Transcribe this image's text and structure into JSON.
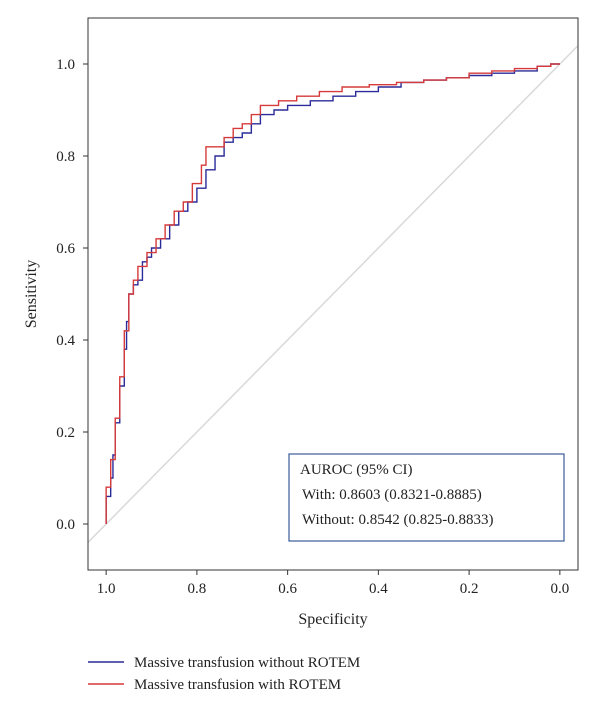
{
  "chart_data": {
    "type": "line",
    "title": "",
    "xlabel": "Specificity",
    "ylabel": "Sensitivity",
    "xlim": [
      1.04,
      -0.04
    ],
    "ylim": [
      -0.1,
      1.1
    ],
    "x_reversed": true,
    "x_ticks": [
      "1.0",
      "0.8",
      "0.6",
      "0.4",
      "0.2",
      "0.0"
    ],
    "y_ticks": [
      "0.0",
      "0.2",
      "0.4",
      "0.6",
      "0.8",
      "1.0"
    ],
    "grid": false,
    "reference_line": {
      "from": [
        1.04,
        -0.04
      ],
      "to": [
        -0.04,
        1.04
      ],
      "color": "#d9d9d9"
    },
    "series": [
      {
        "name": "Massive transfusion without ROTEM",
        "color": "#2b2b99",
        "points": [
          [
            1.0,
            0.0
          ],
          [
            1.0,
            0.06
          ],
          [
            0.99,
            0.1
          ],
          [
            0.985,
            0.15
          ],
          [
            0.98,
            0.22
          ],
          [
            0.97,
            0.3
          ],
          [
            0.96,
            0.38
          ],
          [
            0.955,
            0.44
          ],
          [
            0.95,
            0.5
          ],
          [
            0.94,
            0.52
          ],
          [
            0.93,
            0.53
          ],
          [
            0.92,
            0.57
          ],
          [
            0.91,
            0.58
          ],
          [
            0.9,
            0.6
          ],
          [
            0.88,
            0.62
          ],
          [
            0.86,
            0.65
          ],
          [
            0.84,
            0.68
          ],
          [
            0.82,
            0.7
          ],
          [
            0.8,
            0.73
          ],
          [
            0.78,
            0.77
          ],
          [
            0.76,
            0.8
          ],
          [
            0.74,
            0.83
          ],
          [
            0.72,
            0.84
          ],
          [
            0.7,
            0.85
          ],
          [
            0.68,
            0.87
          ],
          [
            0.66,
            0.89
          ],
          [
            0.63,
            0.9
          ],
          [
            0.6,
            0.91
          ],
          [
            0.55,
            0.92
          ],
          [
            0.5,
            0.93
          ],
          [
            0.45,
            0.94
          ],
          [
            0.4,
            0.95
          ],
          [
            0.35,
            0.96
          ],
          [
            0.3,
            0.965
          ],
          [
            0.25,
            0.97
          ],
          [
            0.2,
            0.975
          ],
          [
            0.15,
            0.98
          ],
          [
            0.1,
            0.985
          ],
          [
            0.05,
            0.995
          ],
          [
            0.02,
            1.0
          ],
          [
            0.0,
            1.0
          ]
        ]
      },
      {
        "name": "Massive transfusion with ROTEM",
        "color": "#d63a3a",
        "points": [
          [
            1.0,
            0.0
          ],
          [
            1.0,
            0.08
          ],
          [
            0.99,
            0.14
          ],
          [
            0.98,
            0.23
          ],
          [
            0.97,
            0.32
          ],
          [
            0.96,
            0.42
          ],
          [
            0.95,
            0.5
          ],
          [
            0.94,
            0.53
          ],
          [
            0.93,
            0.56
          ],
          [
            0.91,
            0.59
          ],
          [
            0.89,
            0.62
          ],
          [
            0.87,
            0.65
          ],
          [
            0.85,
            0.68
          ],
          [
            0.83,
            0.7
          ],
          [
            0.81,
            0.74
          ],
          [
            0.79,
            0.78
          ],
          [
            0.78,
            0.82
          ],
          [
            0.76,
            0.82
          ],
          [
            0.74,
            0.84
          ],
          [
            0.72,
            0.86
          ],
          [
            0.7,
            0.87
          ],
          [
            0.68,
            0.89
          ],
          [
            0.66,
            0.91
          ],
          [
            0.62,
            0.92
          ],
          [
            0.58,
            0.93
          ],
          [
            0.53,
            0.94
          ],
          [
            0.48,
            0.95
          ],
          [
            0.42,
            0.955
          ],
          [
            0.36,
            0.96
          ],
          [
            0.3,
            0.965
          ],
          [
            0.25,
            0.97
          ],
          [
            0.2,
            0.98
          ],
          [
            0.15,
            0.985
          ],
          [
            0.1,
            0.99
          ],
          [
            0.05,
            0.995
          ],
          [
            0.02,
            1.0
          ],
          [
            0.0,
            1.0
          ]
        ]
      }
    ],
    "annotation": {
      "title": "AUROC (95% CI)",
      "lines": [
        "With: 0.8603 (0.8321-0.8885)",
        "Without: 0.8542 (0.825-0.8833)"
      ],
      "border_color": "#3b5a9a",
      "placement": "bottom-right"
    },
    "legend": {
      "placement": "below",
      "entries": [
        "Massive transfusion without ROTEM",
        "Massive transfusion with ROTEM"
      ]
    }
  }
}
